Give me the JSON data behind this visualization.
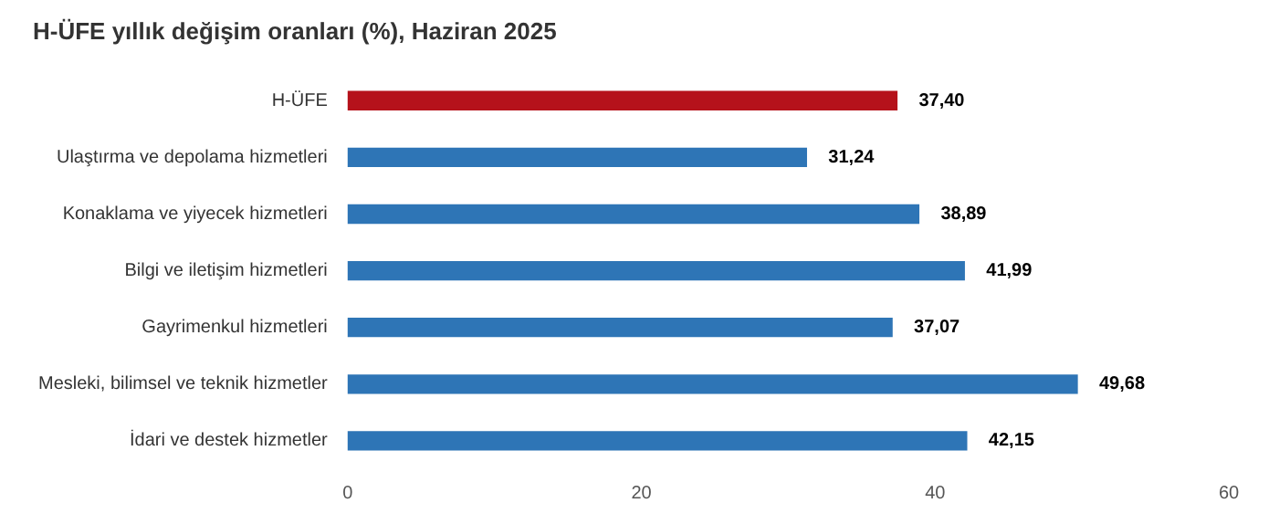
{
  "chart_data": {
    "type": "bar",
    "orientation": "horizontal",
    "title": "H-ÜFE yıllık değişim oranları (%), Haziran 2025",
    "categories": [
      "H-ÜFE",
      "Ulaştırma ve depolama hizmetleri",
      "Konaklama ve yiyecek hizmetleri",
      "Bilgi ve iletişim hizmetleri",
      "Gayrimenkul hizmetleri",
      "Mesleki, bilimsel ve teknik hizmetler",
      "İdari ve destek hizmetler"
    ],
    "values": [
      37.4,
      31.24,
      38.89,
      41.99,
      37.07,
      49.68,
      42.15
    ],
    "colors": [
      "#b5121b",
      "#2e75b6",
      "#2e75b6",
      "#2e75b6",
      "#2e75b6",
      "#2e75b6",
      "#2e75b6"
    ],
    "value_labels": [
      "37,40",
      "31,24",
      "38,89",
      "41,99",
      "37,07",
      "49,68",
      "42,15"
    ],
    "xlim": [
      0,
      60
    ],
    "xticks": [
      0,
      20,
      40,
      60
    ],
    "grid": false,
    "legend": false
  }
}
